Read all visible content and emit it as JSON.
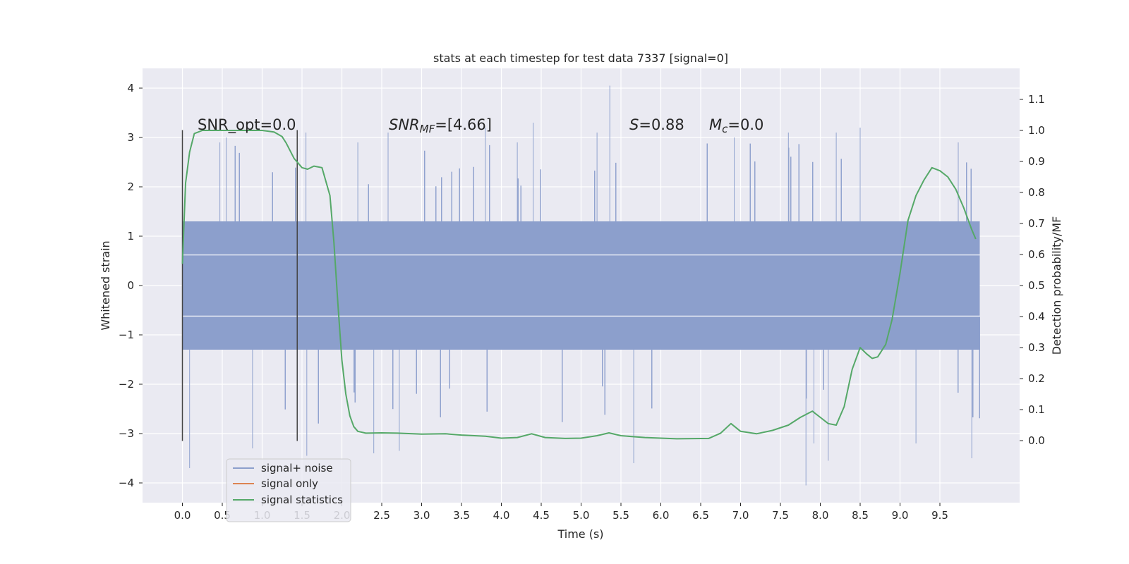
{
  "chart_data": {
    "type": "line",
    "title": "stats at each timestep for test data 7337 [signal=0]",
    "xlabel": "Time (s)",
    "ylabel": "Whitened strain",
    "ylabel_right": "Detection probability/MF",
    "xlim": [
      -0.5,
      10.5
    ],
    "ylim": [
      -4.4,
      4.4
    ],
    "ylim_right": [
      -0.2,
      1.2
    ],
    "x_ticks": [
      0.0,
      0.5,
      1.0,
      1.5,
      2.0,
      2.5,
      3.0,
      3.5,
      4.0,
      4.5,
      5.0,
      5.5,
      6.0,
      6.5,
      7.0,
      7.5,
      8.0,
      8.5,
      9.0,
      9.5
    ],
    "x_tick_labels": [
      "0.0",
      "0.5",
      "1.0",
      "1.5",
      "2.0",
      "2.5",
      "3.0",
      "3.5",
      "4.0",
      "4.5",
      "5.0",
      "5.5",
      "6.0",
      "6.5",
      "7.0",
      "7.5",
      "8.0",
      "8.5",
      "9.0",
      "9.5"
    ],
    "y_ticks": [
      4,
      3,
      2,
      1,
      0,
      -1,
      -2,
      -3,
      -4
    ],
    "y_tick_labels": [
      "4",
      "3",
      "2",
      "1",
      "0",
      "−1",
      "−2",
      "−3",
      "−4"
    ],
    "y_right_ticks": [
      1.1,
      1.0,
      0.9,
      0.8,
      0.7,
      0.6,
      0.5,
      0.4,
      0.3,
      0.2,
      0.1,
      0.0
    ],
    "y_right_tick_labels": [
      "1.1",
      "1.0",
      "0.9",
      "0.8",
      "0.7",
      "0.6",
      "0.5",
      "0.4",
      "0.3",
      "0.2",
      "0.1",
      "0.0"
    ],
    "grid": true,
    "legend_position": "lower-left",
    "annotations": {
      "snr_opt": "SNR_opt=0.0",
      "snr_mf_var": "SNR",
      "snr_mf_sub": "MF",
      "snr_mf_value": "=[4.66]",
      "s_var": "S",
      "s_value": "=0.88",
      "mc_var": "M",
      "mc_sub": "c",
      "mc_value": "=0.0"
    },
    "window_markers_x": [
      0.0,
      1.44
    ],
    "window_markers_y": [
      -3.15,
      3.15
    ],
    "series": [
      {
        "name": "signal+ noise",
        "color": "#8c9fcc",
        "axis": "left",
        "kind": "noise",
        "x_range": [
          0.0,
          10.0
        ],
        "band": [
          -1.3,
          1.3
        ],
        "peaks": [
          [
            0.0,
            2.8
          ],
          [
            0.09,
            -3.7
          ],
          [
            0.47,
            2.9
          ],
          [
            0.55,
            3.0
          ],
          [
            0.88,
            -3.3
          ],
          [
            1.55,
            3.1
          ],
          [
            1.56,
            -3.45
          ],
          [
            2.2,
            2.9
          ],
          [
            2.4,
            -3.4
          ],
          [
            2.58,
            3.1
          ],
          [
            2.72,
            -3.35
          ],
          [
            3.8,
            3.2
          ],
          [
            4.2,
            2.9
          ],
          [
            4.4,
            3.3
          ],
          [
            5.2,
            3.1
          ],
          [
            5.36,
            4.05
          ],
          [
            5.66,
            -3.6
          ],
          [
            6.92,
            3.0
          ],
          [
            7.6,
            3.1
          ],
          [
            7.82,
            -4.05
          ],
          [
            7.92,
            -3.2
          ],
          [
            8.1,
            -3.55
          ],
          [
            8.2,
            3.1
          ],
          [
            8.5,
            3.2
          ],
          [
            9.2,
            -3.2
          ],
          [
            9.73,
            2.9
          ],
          [
            9.9,
            -3.5
          ]
        ]
      },
      {
        "name": "signal only",
        "color": "#dd8452",
        "axis": "left",
        "x": [],
        "y": []
      },
      {
        "name": "signal statistics",
        "color": "#55a868",
        "axis": "right",
        "x": [
          0.0,
          0.04,
          0.09,
          0.15,
          0.25,
          0.4,
          0.6,
          0.8,
          1.0,
          1.15,
          1.25,
          1.3,
          1.4,
          1.5,
          1.57,
          1.65,
          1.75,
          1.85,
          1.9,
          1.95,
          2.0,
          2.05,
          2.1,
          2.15,
          2.2,
          2.3,
          2.5,
          2.7,
          3.0,
          3.3,
          3.5,
          3.8,
          4.0,
          4.2,
          4.38,
          4.55,
          4.8,
          5.0,
          5.2,
          5.35,
          5.5,
          5.8,
          6.2,
          6.6,
          6.75,
          6.88,
          7.0,
          7.2,
          7.4,
          7.6,
          7.75,
          7.9,
          8.0,
          8.1,
          8.2,
          8.3,
          8.4,
          8.5,
          8.58,
          8.65,
          8.72,
          8.82,
          8.9,
          9.0,
          9.1,
          9.2,
          9.3,
          9.4,
          9.5,
          9.6,
          9.7,
          9.8,
          9.9,
          9.95
        ],
        "y": [
          0.57,
          0.83,
          0.93,
          0.99,
          1.0,
          1.0,
          1.0,
          1.0,
          1.0,
          0.995,
          0.98,
          0.96,
          0.91,
          0.88,
          0.875,
          0.885,
          0.88,
          0.79,
          0.64,
          0.44,
          0.26,
          0.15,
          0.08,
          0.045,
          0.03,
          0.024,
          0.025,
          0.024,
          0.021,
          0.022,
          0.018,
          0.014,
          0.008,
          0.01,
          0.022,
          0.01,
          0.007,
          0.008,
          0.016,
          0.025,
          0.016,
          0.01,
          0.006,
          0.007,
          0.024,
          0.055,
          0.03,
          0.022,
          0.033,
          0.05,
          0.075,
          0.095,
          0.075,
          0.055,
          0.05,
          0.11,
          0.23,
          0.3,
          0.28,
          0.265,
          0.27,
          0.31,
          0.39,
          0.54,
          0.71,
          0.79,
          0.84,
          0.88,
          0.87,
          0.85,
          0.81,
          0.75,
          0.68,
          0.65
        ]
      }
    ]
  }
}
